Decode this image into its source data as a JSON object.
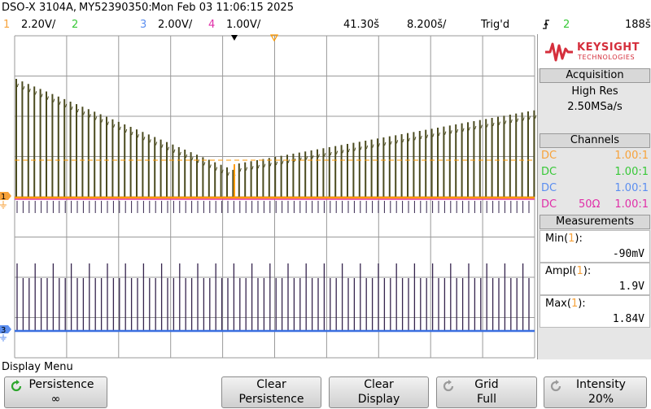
{
  "title": {
    "model": "DSO-X 3104A,",
    "serial": "MY52390350:",
    "datetime": "Mon Feb 03 11:06:15 2025"
  },
  "status": {
    "ch1_num": "1",
    "ch1_scale": "2.20V/",
    "ch2_num": "2",
    "ch3_num": "3",
    "ch3_scale": "2.00V/",
    "ch4_num": "4",
    "ch4_scale": "1.00V/",
    "time_delay": "41.30š",
    "time_scale": "8.200š/",
    "trigger_state": "Trig'd",
    "trigger_source": "2",
    "trigger_level": "188š"
  },
  "logo": {
    "brand": "KEYSIGHT",
    "sub": "TECHNOLOGIES"
  },
  "acquisition": {
    "header": "Acquisition",
    "mode": "High Res",
    "rate": "2.50MSa/s"
  },
  "channels": {
    "header": "Channels",
    "rows": [
      {
        "coupling": "DC",
        "impedance": "",
        "probe": "1.00:1",
        "color": "#f7a23a"
      },
      {
        "coupling": "DC",
        "impedance": "",
        "probe": "1.00:1",
        "color": "#37c837"
      },
      {
        "coupling": "DC",
        "impedance": "",
        "probe": "1.00:1",
        "color": "#5b8ef0"
      },
      {
        "coupling": "DC",
        "impedance": "50Ω",
        "probe": "1.00:1",
        "color": "#e02ea8"
      }
    ]
  },
  "measurements": {
    "header": "Measurements",
    "items": [
      {
        "label_pre": "Min(",
        "label_ch": "1",
        "label_post": "):",
        "value": "-90mV"
      },
      {
        "label_pre": "Ampl(",
        "label_ch": "1",
        "label_post": "):",
        "value": "1.9V"
      },
      {
        "label_pre": "Max(",
        "label_ch": "1",
        "label_post": "):",
        "value": "1.84V"
      }
    ]
  },
  "markers": {
    "ch1": "1",
    "ch3": "3"
  },
  "menu": {
    "title": "Display Menu",
    "softkeys": [
      {
        "line1": "Persistence",
        "line2": "∞"
      },
      {
        "line1": "Clear",
        "line2": "Persistence"
      },
      {
        "line1": "Clear",
        "line2": "Display"
      },
      {
        "line1": "Grid",
        "line2": "Full"
      },
      {
        "line1": "Intensity",
        "line2": "20%"
      }
    ]
  },
  "colors": {
    "ch1": "#f7a23a",
    "ch2": "#37c837",
    "ch3": "#5b8ef0",
    "ch4": "#e02ea8",
    "ch1_trace": "#ff9a00",
    "ch2_trace": "#4b4b1f",
    "ch3_trace": "#3a6fe0",
    "ch4_trace": "#35244d",
    "grid": "#9a9a9a",
    "marker_red": "#d52f3c"
  }
}
